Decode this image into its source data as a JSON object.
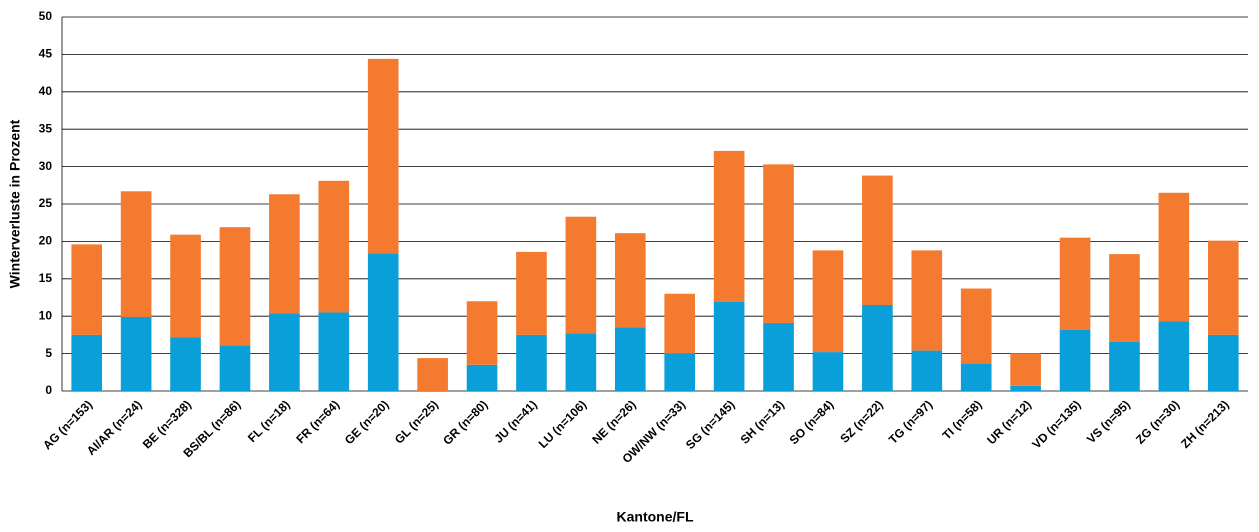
{
  "chart_data": {
    "type": "stacked_bar",
    "x_label": "Kantone/FL",
    "y_label": "Winterverluste in Prozent",
    "categories": [
      "AG (n=153)",
      "AI/AR (n=24)",
      "BE (n=328)",
      "BS/BL (n=86)",
      "FL (n=18)",
      "FR (n=64)",
      "GE (n=20)",
      "GL (n=25)",
      "GR (n=80)",
      "JU (n=41)",
      "LU (n=106)",
      "NE (n=26)",
      "OW/NW (n=33)",
      "SG (n=145)",
      "SH (n=13)",
      "SO (n=84)",
      "SZ (n=22)",
      "TG (n=97)",
      "TI (n=58)",
      "UR (n=12)",
      "VD (n=135)",
      "VS (n=95)",
      "ZG (n=30)",
      "ZH (n=213)"
    ],
    "series": [
      {
        "color": "#0a9fd8",
        "values": [
          7.5,
          9.9,
          7.2,
          6.1,
          10.4,
          10.5,
          18.4,
          0,
          3.5,
          7.5,
          7.7,
          8.5,
          5.0,
          11.9,
          9.1,
          5.2,
          11.5,
          5.4,
          3.7,
          0.7,
          8.2,
          6.6,
          9.3,
          7.5
        ]
      },
      {
        "color": "#f47a2f",
        "values": [
          12.1,
          16.8,
          13.7,
          15.8,
          15.9,
          17.6,
          26.0,
          4.4,
          8.5,
          11.1,
          15.6,
          12.6,
          8.0,
          20.2,
          21.2,
          13.6,
          17.3,
          13.4,
          10.0,
          4.3,
          12.3,
          11.7,
          17.2,
          12.6
        ]
      }
    ],
    "ylim": [
      0,
      50
    ],
    "yticks": [
      0,
      5,
      10,
      15,
      20,
      25,
      30,
      35,
      40,
      45,
      50
    ],
    "grid": true
  }
}
